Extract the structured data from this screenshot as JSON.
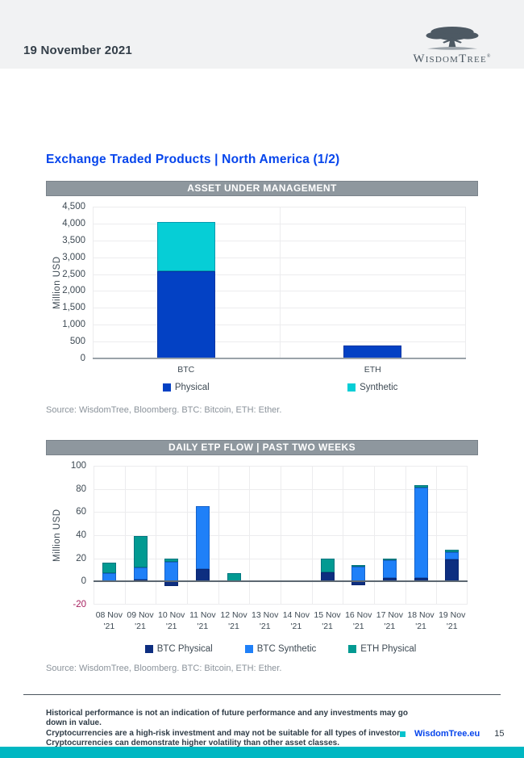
{
  "header": {
    "date": "19 November 2021",
    "logo": {
      "name_part1": "W",
      "name_part2": "ISDOM",
      "name_part3": "T",
      "name_part4": "REE",
      "registered": "®"
    }
  },
  "page_title": "Exchange Traded Products | North America (1/2)",
  "chart_data": [
    {
      "type": "bar",
      "stacked": true,
      "title": "ASSET UNDER MANAGEMENT",
      "ylabel": "Million USD",
      "ylim": [
        0,
        4500
      ],
      "ytick_step": 500,
      "grid": true,
      "legend_position": "bottom",
      "categories": [
        "BTC",
        "ETH"
      ],
      "series": [
        {
          "name": "Physical",
          "color": "#0341c4",
          "values": [
            2590,
            375
          ]
        },
        {
          "name": "Synthetic",
          "color": "#06ced6",
          "values": [
            1460,
            0
          ]
        }
      ],
      "source": "Source: WisdomTree, Bloomberg. BTC: Bitcoin, ETH: Ether."
    },
    {
      "type": "bar",
      "stacked": true,
      "title": "DAILY ETP FLOW | PAST TWO WEEKS",
      "ylabel": "Million USD",
      "ylim": [
        -20,
        100
      ],
      "ytick_step": 20,
      "grid": true,
      "legend_position": "bottom",
      "categories": [
        "08 Nov '21",
        "09 Nov '21",
        "10 Nov '21",
        "11 Nov '21",
        "12 Nov '21",
        "13 Nov '21",
        "14 Nov '21",
        "15 Nov '21",
        "16 Nov '21",
        "17 Nov '21",
        "18 Nov '21",
        "19 Nov '21"
      ],
      "series": [
        {
          "name": "BTC Physical",
          "color": "#0d2e80",
          "values": [
            0,
            1.5,
            -4,
            11,
            0,
            0,
            0,
            8,
            -3,
            3,
            3,
            19
          ]
        },
        {
          "name": "BTC Synthetic",
          "color": "#1f80f8",
          "values": [
            7,
            10.5,
            17,
            54,
            0,
            0,
            0,
            0,
            13,
            15.5,
            78,
            6.5
          ]
        },
        {
          "name": "ETH Physical",
          "color": "#029a92",
          "values": [
            9,
            27,
            3,
            0,
            7,
            0,
            0,
            12,
            1.5,
            1.5,
            2.5,
            2
          ]
        }
      ],
      "source": "Source: WisdomTree, Bloomberg. BTC: Bitcoin, ETH: Ether."
    }
  ],
  "footer": {
    "disclaimer_lines": [
      "Historical performance is not an indication of future performance and any investments may go down in value.",
      "Cryptocurrencies are a high-risk investment and may not be suitable for all types of investor.",
      "Cryptocurrencies can demonstrate higher volatility than other asset classes."
    ],
    "site_label": "WisdomTree.eu",
    "page_number": "15"
  },
  "colors": {
    "accent_blue": "#0645ec",
    "brand_teal": "#00b7c2",
    "negative_tick": "#a61e5e",
    "header_bar_gray": "#8e979e"
  }
}
